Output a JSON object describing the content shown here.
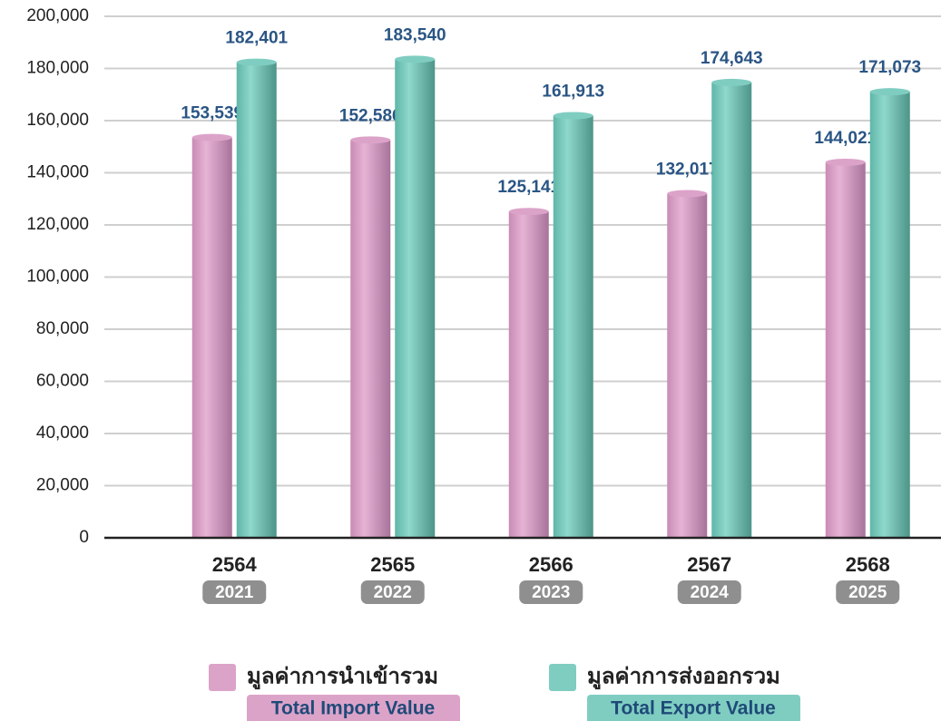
{
  "chart_data": {
    "type": "bar",
    "categories": [
      "2564",
      "2565",
      "2566",
      "2567",
      "2568"
    ],
    "categories_alt": [
      "2021",
      "2022",
      "2023",
      "2024",
      "2025"
    ],
    "series": [
      {
        "name": "มูลค่าการนำเข้ารวม",
        "name_alt": "Total Import Value",
        "color": "#dca3c9",
        "values": [
          153539,
          152586,
          125141,
          132017,
          144021
        ],
        "value_labels": [
          "153,539",
          "152,586",
          "125,141",
          "132,017",
          "144,021"
        ]
      },
      {
        "name": "มูลค่าการส่งออกรวม",
        "name_alt": "Total Export Value",
        "color": "#7fcdc1",
        "values": [
          182401,
          183540,
          161913,
          174643,
          171073
        ],
        "value_labels": [
          "182,401",
          "183,540",
          "161,913",
          "174,643",
          "171,073"
        ]
      }
    ],
    "ylim": [
      0,
      200000
    ],
    "yticks": [
      0,
      {
        "value": 20000,
        "label": "20,000"
      },
      {
        "value": 40000,
        "label": "40,000"
      },
      {
        "value": 60000,
        "label": "60,000"
      },
      {
        "value": 80000,
        "label": "80,000"
      },
      {
        "value": 100000,
        "label": "100,000"
      },
      {
        "value": 120000,
        "label": "120,000"
      },
      {
        "value": 140000,
        "label": "140,000"
      },
      {
        "value": 160000,
        "label": "160,000"
      },
      {
        "value": 180000,
        "label": "180,000"
      },
      {
        "value": 200000,
        "label": "200,000"
      }
    ],
    "grid": true
  }
}
